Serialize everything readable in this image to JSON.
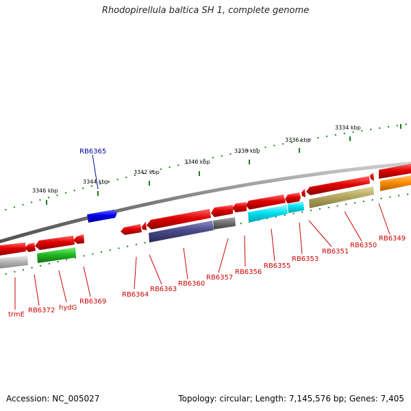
{
  "title": "Rhodopirellula baltica SH 1, complete genome",
  "footer": {
    "accession": "Accession: NC_005027",
    "summary": "Topology: circular; Length: 7,145,576 bp; Genes: 7,405"
  },
  "scale_labels": [
    "3334 kbp",
    "3336 kbp",
    "3338 kbp",
    "3340 kbp",
    "3342 kbp",
    "3344 kbp",
    "3346 kbp"
  ],
  "gene_labels": [
    {
      "name": "RB6365",
      "color": "#000099"
    },
    {
      "name": "RB6349",
      "color": "#cc0000"
    },
    {
      "name": "RB6350",
      "color": "#cc0000"
    },
    {
      "name": "RB6351",
      "color": "#cc0000"
    },
    {
      "name": "RB6353",
      "color": "#cc0000"
    },
    {
      "name": "RB6355",
      "color": "#cc0000"
    },
    {
      "name": "RB6356",
      "color": "#cc0000"
    },
    {
      "name": "RB6357",
      "color": "#cc0000"
    },
    {
      "name": "RB6360",
      "color": "#cc0000"
    },
    {
      "name": "RB6363",
      "color": "#cc0000"
    },
    {
      "name": "RB6364",
      "color": "#cc0000"
    },
    {
      "name": "RB6369",
      "color": "#cc0000"
    },
    {
      "name": "hydG",
      "color": "#cc0000"
    },
    {
      "name": "RB6372",
      "color": "#cc0000"
    },
    {
      "name": "trmE",
      "color": "#cc0000"
    }
  ],
  "colors": {
    "backbone": "#888888",
    "ticks": "#1a7a1a",
    "red_gene": "#e00000",
    "blue_gene": "#0000ee",
    "purple_gene": "#4a4a8a",
    "gray_gene": "#707070",
    "cyan_gene": "#00e0f0",
    "olive_gene": "#b5a860",
    "orange_gene": "#ff8c00",
    "green_gene": "#22bb22",
    "lightgray_gene": "#b8b8b8"
  }
}
